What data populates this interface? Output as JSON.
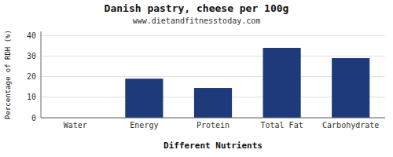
{
  "chart_data": {
    "type": "bar",
    "title": "Danish pastry, cheese per 100g",
    "subtitle": "www.dietandfitnesstoday.com",
    "categories": [
      "Water",
      "Energy",
      "Protein",
      "Total Fat",
      "Carbohydrate"
    ],
    "values": [
      0,
      19,
      14.5,
      34,
      29
    ],
    "color": "#1f3a7a",
    "xlabel": "Different Nutrients",
    "ylabel": "Percentage of RDH (%)",
    "ylim": [
      0,
      42
    ],
    "yticks": [
      0,
      10,
      20,
      30,
      40
    ],
    "grid": true
  }
}
